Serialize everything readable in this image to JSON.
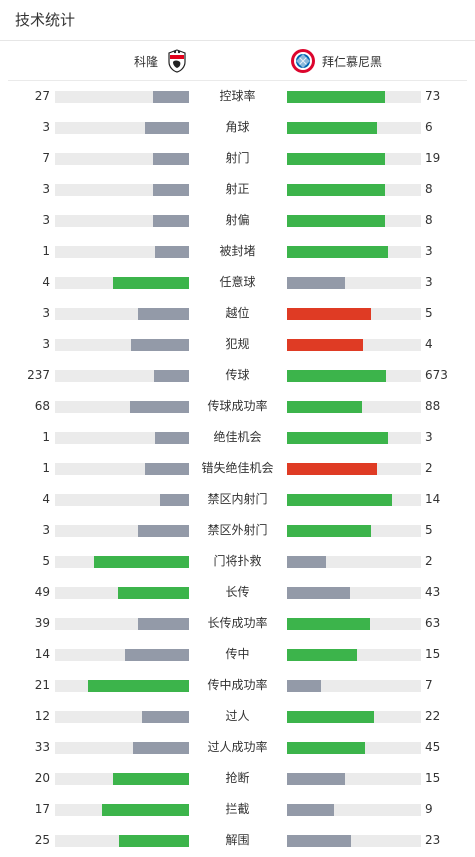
{
  "page": {
    "title": "技术统计"
  },
  "teams": {
    "home": {
      "name": "科隆",
      "logo_icon": "fc-koln-crest-icon"
    },
    "away": {
      "name": "拜仁慕尼黑",
      "logo_icon": "fc-bayern-crest-icon"
    }
  },
  "colors": {
    "win": "#3cb44b",
    "neutral": "#939aa8",
    "negative": "#df3b24",
    "track": "#ebebeb"
  },
  "stats": [
    {
      "label": "控球率",
      "home": "27",
      "away": "73",
      "home_fill": 0.27,
      "away_fill": 0.73,
      "home_color": "grey",
      "away_color": "green"
    },
    {
      "label": "角球",
      "home": "3",
      "away": "6",
      "home_fill": 0.33,
      "away_fill": 0.67,
      "home_color": "grey",
      "away_color": "green"
    },
    {
      "label": "射门",
      "home": "7",
      "away": "19",
      "home_fill": 0.27,
      "away_fill": 0.73,
      "home_color": "grey",
      "away_color": "green"
    },
    {
      "label": "射正",
      "home": "3",
      "away": "8",
      "home_fill": 0.27,
      "away_fill": 0.73,
      "home_color": "grey",
      "away_color": "green"
    },
    {
      "label": "射偏",
      "home": "3",
      "away": "8",
      "home_fill": 0.27,
      "away_fill": 0.73,
      "home_color": "grey",
      "away_color": "green"
    },
    {
      "label": "被封堵",
      "home": "1",
      "away": "3",
      "home_fill": 0.25,
      "away_fill": 0.75,
      "home_color": "grey",
      "away_color": "green"
    },
    {
      "label": "任意球",
      "home": "4",
      "away": "3",
      "home_fill": 0.57,
      "away_fill": 0.43,
      "home_color": "green",
      "away_color": "grey"
    },
    {
      "label": "越位",
      "home": "3",
      "away": "5",
      "home_fill": 0.38,
      "away_fill": 0.63,
      "home_color": "grey",
      "away_color": "red"
    },
    {
      "label": "犯规",
      "home": "3",
      "away": "4",
      "home_fill": 0.43,
      "away_fill": 0.57,
      "home_color": "grey",
      "away_color": "red"
    },
    {
      "label": "传球",
      "home": "237",
      "away": "673",
      "home_fill": 0.26,
      "away_fill": 0.74,
      "home_color": "grey",
      "away_color": "green"
    },
    {
      "label": "传球成功率",
      "home": "68",
      "away": "88",
      "home_fill": 0.44,
      "away_fill": 0.56,
      "home_color": "grey",
      "away_color": "green"
    },
    {
      "label": "绝佳机会",
      "home": "1",
      "away": "3",
      "home_fill": 0.25,
      "away_fill": 0.75,
      "home_color": "grey",
      "away_color": "green"
    },
    {
      "label": "错失绝佳机会",
      "home": "1",
      "away": "2",
      "home_fill": 0.33,
      "away_fill": 0.67,
      "home_color": "grey",
      "away_color": "red"
    },
    {
      "label": "禁区内射门",
      "home": "4",
      "away": "14",
      "home_fill": 0.22,
      "away_fill": 0.78,
      "home_color": "grey",
      "away_color": "green"
    },
    {
      "label": "禁区外射门",
      "home": "3",
      "away": "5",
      "home_fill": 0.38,
      "away_fill": 0.63,
      "home_color": "grey",
      "away_color": "green"
    },
    {
      "label": "门将扑救",
      "home": "5",
      "away": "2",
      "home_fill": 0.71,
      "away_fill": 0.29,
      "home_color": "green",
      "away_color": "grey"
    },
    {
      "label": "长传",
      "home": "49",
      "away": "43",
      "home_fill": 0.53,
      "away_fill": 0.47,
      "home_color": "green",
      "away_color": "grey"
    },
    {
      "label": "长传成功率",
      "home": "39",
      "away": "63",
      "home_fill": 0.38,
      "away_fill": 0.62,
      "home_color": "grey",
      "away_color": "green"
    },
    {
      "label": "传中",
      "home": "14",
      "away": "15",
      "home_fill": 0.48,
      "away_fill": 0.52,
      "home_color": "grey",
      "away_color": "green"
    },
    {
      "label": "传中成功率",
      "home": "21",
      "away": "7",
      "home_fill": 0.75,
      "away_fill": 0.25,
      "home_color": "green",
      "away_color": "grey"
    },
    {
      "label": "过人",
      "home": "12",
      "away": "22",
      "home_fill": 0.35,
      "away_fill": 0.65,
      "home_color": "grey",
      "away_color": "green"
    },
    {
      "label": "过人成功率",
      "home": "33",
      "away": "45",
      "home_fill": 0.42,
      "away_fill": 0.58,
      "home_color": "grey",
      "away_color": "green"
    },
    {
      "label": "抢断",
      "home": "20",
      "away": "15",
      "home_fill": 0.57,
      "away_fill": 0.43,
      "home_color": "green",
      "away_color": "grey"
    },
    {
      "label": "拦截",
      "home": "17",
      "away": "9",
      "home_fill": 0.65,
      "away_fill": 0.35,
      "home_color": "green",
      "away_color": "grey"
    },
    {
      "label": "解围",
      "home": "25",
      "away": "23",
      "home_fill": 0.52,
      "away_fill": 0.48,
      "home_color": "green",
      "away_color": "grey"
    }
  ]
}
